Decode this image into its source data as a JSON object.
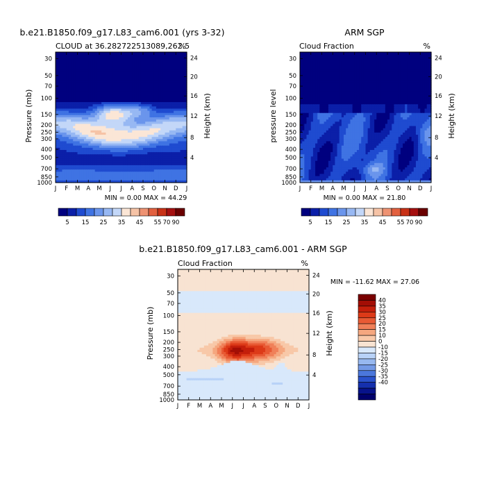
{
  "page": {
    "main_title": "b.e21.B1850.f09_g17.L83_cam6.001 (yrs 3-32)",
    "obs_title": "ARM SGP",
    "diff_title": "b.e21.B1850.f09_g17.L83_cam6.001 - ARM SGP"
  },
  "chart_data": [
    {
      "id": "model",
      "type": "heatmap",
      "subtitle_left": "CLOUD at 36.282722513089,262.5",
      "subtitle_right": "%",
      "ylabel": "Pressure (mb)",
      "ylabel_right": "Height (km)",
      "x_ticks": [
        "J",
        "F",
        "M",
        "A",
        "M",
        "J",
        "J",
        "A",
        "S",
        "O",
        "N",
        "D",
        "J"
      ],
      "y_ticks": [
        "30",
        "50",
        "70",
        "100",
        "150",
        "200",
        "250",
        "300",
        "400",
        "500",
        "700",
        "850",
        "1000"
      ],
      "height_ticks": [
        "24",
        "20",
        "16",
        "12",
        "8",
        "4"
      ],
      "stats": "MIN =    0.00 MAX =   44.29",
      "min": 0.0,
      "max": 44.29,
      "colorbar_labels": [
        "5",
        "15",
        "25",
        "35",
        "45",
        "55",
        "70",
        "90"
      ]
    },
    {
      "id": "obs",
      "type": "heatmap",
      "subtitle_left": "Cloud Fraction",
      "subtitle_right": "%",
      "ylabel": "pressure level",
      "ylabel_right": "Height (km)",
      "x_ticks": [
        "J",
        "F",
        "M",
        "A",
        "M",
        "J",
        "J",
        "A",
        "S",
        "O",
        "N",
        "D",
        "J"
      ],
      "y_ticks": [
        "30",
        "50",
        "70",
        "100",
        "150",
        "200",
        "250",
        "300",
        "400",
        "500",
        "700",
        "850",
        "1000"
      ],
      "height_ticks": [
        "24",
        "20",
        "16",
        "12",
        "8",
        "4"
      ],
      "stats": "MIN =    0.00 MAX =   21.80",
      "min": 0.0,
      "max": 21.8,
      "colorbar_labels": [
        "5",
        "15",
        "25",
        "35",
        "45",
        "55",
        "70",
        "90"
      ]
    },
    {
      "id": "diff",
      "type": "heatmap",
      "subtitle_left": "Cloud Fraction",
      "subtitle_right": "%",
      "ylabel": "Pressure (mb)",
      "ylabel_right": "Height (km)",
      "x_ticks": [
        "J",
        "F",
        "M",
        "A",
        "M",
        "J",
        "J",
        "A",
        "S",
        "O",
        "N",
        "D",
        "J"
      ],
      "y_ticks": [
        "30",
        "50",
        "70",
        "100",
        "150",
        "200",
        "250",
        "300",
        "400",
        "500",
        "700",
        "850",
        "1000"
      ],
      "height_ticks": [
        "24",
        "20",
        "16",
        "12",
        "8",
        "4"
      ],
      "stats": "MIN = -11.62 MAX =   27.06",
      "min": -11.62,
      "max": 27.06,
      "colorbar_labels": [
        "40",
        "35",
        "30",
        "25",
        "20",
        "15",
        "10",
        "0",
        "-10",
        "-15",
        "-20",
        "-25",
        "-30",
        "-35",
        "-40"
      ]
    }
  ],
  "colors": {
    "seq": [
      "#00007f",
      "#0b1fa8",
      "#1f4bd0",
      "#3f73e3",
      "#6a95ec",
      "#97b8f3",
      "#c3d7f8",
      "#fbe6d6",
      "#f6c3a6",
      "#ee9272",
      "#e2603f",
      "#c83116",
      "#a50f0f",
      "#6b0000"
    ],
    "div_pos": [
      "#f8e3d2",
      "#f8c8a8",
      "#f5a77f",
      "#f08059",
      "#e85a34",
      "#dd3a18",
      "#c41f0b",
      "#a30e05",
      "#7a0000"
    ],
    "div_neg": [
      "#d8e8fb",
      "#b8d2f7",
      "#97b8f0",
      "#7399e6",
      "#4b77dc",
      "#2a52cc",
      "#1530ad",
      "#07128a",
      "#00006b"
    ]
  }
}
